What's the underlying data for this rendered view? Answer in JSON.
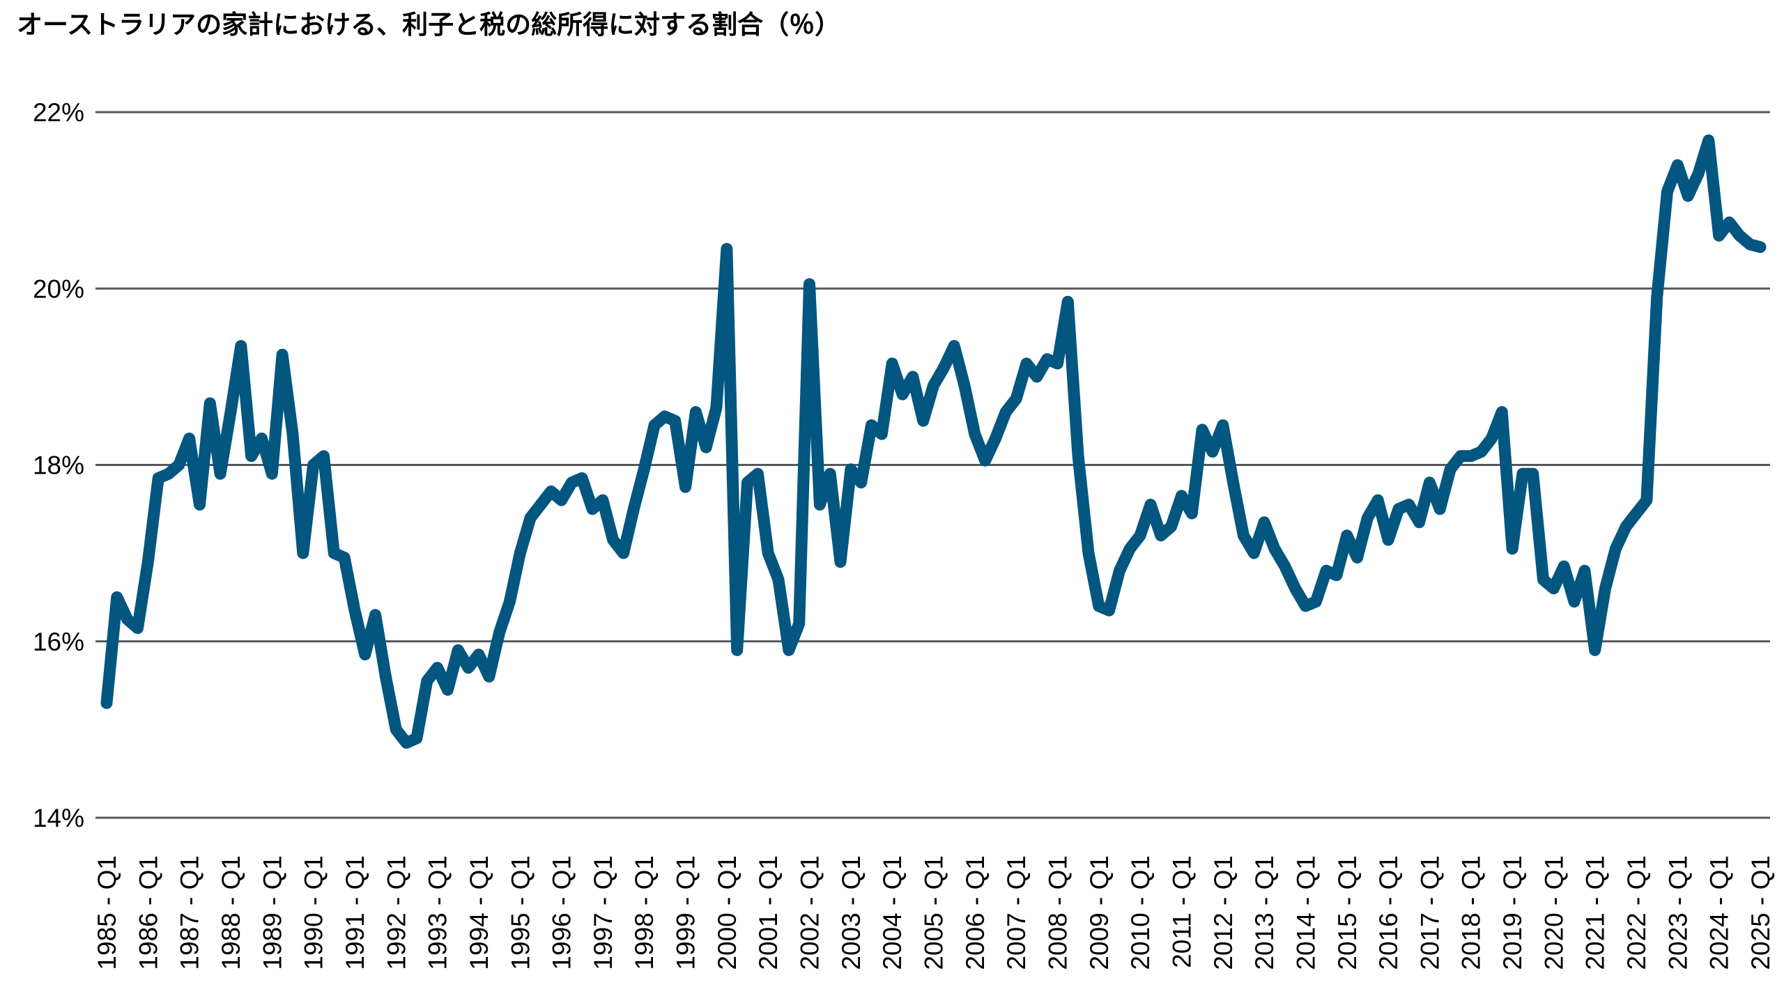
{
  "title": "オーストラリアの家計における、利子と税の総所得に対する割合（％）",
  "colors": {
    "line": "#03567F",
    "grid": "#54575B",
    "text": "#000000",
    "background": "#FFFFFF"
  },
  "chart_data": {
    "type": "line",
    "title": "オーストラリアの家計における、利子と税の総所得に対する割合（％）",
    "xlabel": "",
    "ylabel": "",
    "ylim": [
      14,
      22
    ],
    "grid": "horizontal-only",
    "legend": "none",
    "frequency": "quarterly",
    "x_start_label": "1985 - Q1",
    "x_end_label": "2025 - Q1",
    "y_tick_labels": [
      "22%",
      "20%",
      "18%",
      "16%",
      "14%"
    ],
    "y_tick_values": [
      22,
      20,
      18,
      16,
      14
    ],
    "x_tick_labels": [
      "1985 - Q1",
      "1986 - Q1",
      "1987 - Q1",
      "1988 - Q1",
      "1989 - Q1",
      "1990 - Q1",
      "1991 - Q1",
      "1992 - Q1",
      "1993 - Q1",
      "1994 - Q1",
      "1995 - Q1",
      "1996 - Q1",
      "1997 - Q1",
      "1998 - Q1",
      "1999 - Q1",
      "2000 - Q1",
      "2001 - Q1",
      "2002 - Q1",
      "2003 - Q1",
      "2004 - Q1",
      "2005 - Q1",
      "2006 - Q1",
      "2007 - Q1",
      "2008 - Q1",
      "2009 - Q1",
      "2010 - Q1",
      "2011 - Q1",
      "2012 - Q1",
      "2013 - Q1",
      "2014 - Q1",
      "2015 - Q1",
      "2016 - Q1",
      "2017 - Q1",
      "2018 - Q1",
      "2019 - Q1",
      "2020 - Q1",
      "2021 - Q1",
      "2022 - Q1",
      "2023 - Q1",
      "2024 - Q1",
      "2025 - Q1"
    ],
    "series": [
      {
        "name": "利子と税の総所得に対する割合",
        "unit": "%",
        "values": [
          15.3,
          16.5,
          16.25,
          16.15,
          16.9,
          17.85,
          17.9,
          18.0,
          18.3,
          17.55,
          18.7,
          17.9,
          18.6,
          19.35,
          18.1,
          18.3,
          17.9,
          19.25,
          18.35,
          17.0,
          18.0,
          18.1,
          17.0,
          16.95,
          16.35,
          15.85,
          16.3,
          15.6,
          15.0,
          14.85,
          14.9,
          15.55,
          15.7,
          15.45,
          15.9,
          15.7,
          15.85,
          15.6,
          16.1,
          16.45,
          17.0,
          17.4,
          17.55,
          17.7,
          17.6,
          17.8,
          17.85,
          17.5,
          17.6,
          17.15,
          17.0,
          17.5,
          17.95,
          18.45,
          18.55,
          18.5,
          17.75,
          18.6,
          18.2,
          18.65,
          20.45,
          15.9,
          17.8,
          17.9,
          17.0,
          16.7,
          15.9,
          16.2,
          20.05,
          17.55,
          17.9,
          16.9,
          17.95,
          17.8,
          18.45,
          18.35,
          19.15,
          18.8,
          19.0,
          18.5,
          18.9,
          19.1,
          19.35,
          18.9,
          18.35,
          18.05,
          18.3,
          18.6,
          18.75,
          19.15,
          19.0,
          19.2,
          19.15,
          19.85,
          18.1,
          17.0,
          16.4,
          16.35,
          16.8,
          17.05,
          17.2,
          17.55,
          17.2,
          17.3,
          17.65,
          17.45,
          18.4,
          18.15,
          18.45,
          17.8,
          17.2,
          17.0,
          17.35,
          17.05,
          16.85,
          16.6,
          16.4,
          16.45,
          16.8,
          16.75,
          17.2,
          16.95,
          17.4,
          17.6,
          17.15,
          17.5,
          17.55,
          17.35,
          17.8,
          17.5,
          17.95,
          18.1,
          18.1,
          18.15,
          18.3,
          18.6,
          17.05,
          17.9,
          17.9,
          16.7,
          16.6,
          16.85,
          16.45,
          16.8,
          15.9,
          16.6,
          17.05,
          17.3,
          17.45,
          17.6,
          19.9,
          21.1,
          21.4,
          21.05,
          21.3,
          21.68,
          20.6,
          20.75,
          20.6,
          20.5,
          20.47
        ]
      }
    ]
  }
}
